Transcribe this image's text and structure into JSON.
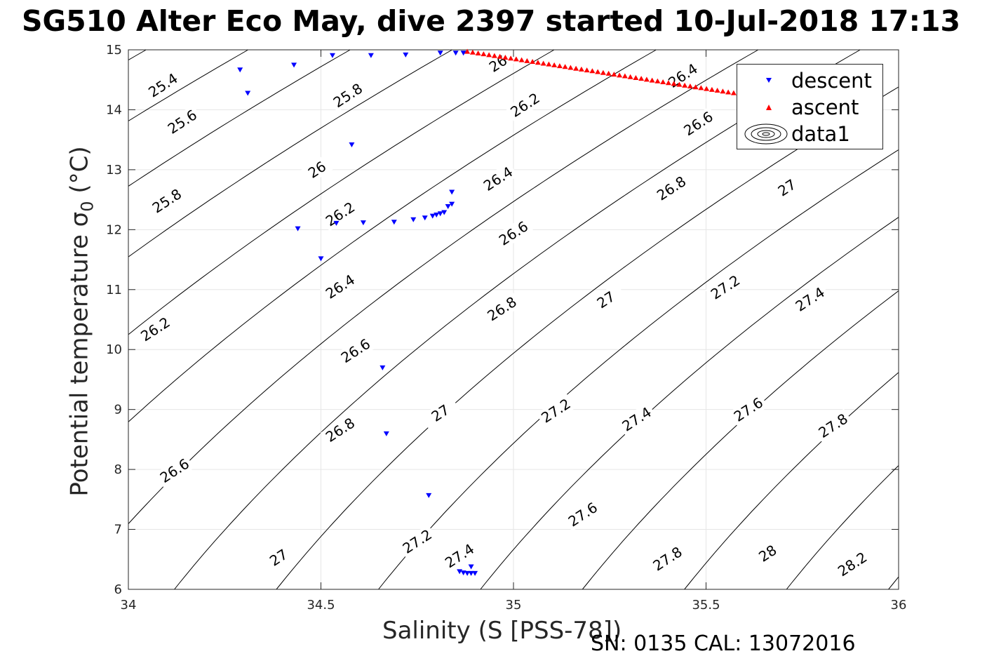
{
  "title": "SG510 Alter Eco May, dive 2397 started 10-Jul-2018 17:13",
  "xlabel": "Salinity (S [PSS-78])",
  "ylabel_main": "Potential temperature ",
  "ylabel_symbol": "σ",
  "ylabel_sub": "0",
  "ylabel_unit": " (°C)",
  "footer": "SN: 0135  CAL: 13072016",
  "colors": {
    "descent": "#0000ff",
    "ascent": "#ff0000",
    "contour": "#000000",
    "grid": "#e6e6e6",
    "axis": "#262626"
  },
  "chart_data": {
    "type": "scatter",
    "xlim": [
      34,
      36
    ],
    "ylim": [
      6,
      15
    ],
    "xticks": [
      "34",
      "34.5",
      "35",
      "35.5",
      "36"
    ],
    "yticks": [
      "6",
      "7",
      "8",
      "9",
      "10",
      "11",
      "12",
      "13",
      "14",
      "15"
    ],
    "grid": true,
    "legend_position": "top-right",
    "legend": [
      "descent",
      "ascent",
      "data1"
    ],
    "series": [
      {
        "name": "descent",
        "marker": "triangle-down",
        "color": "#0000ff",
        "points": [
          [
            34.29,
            14.67
          ],
          [
            34.31,
            14.28
          ],
          [
            34.43,
            14.75
          ],
          [
            34.53,
            14.91
          ],
          [
            34.63,
            14.91
          ],
          [
            34.72,
            14.92
          ],
          [
            34.81,
            14.95
          ],
          [
            34.85,
            14.95
          ],
          [
            34.87,
            14.95
          ],
          [
            34.58,
            13.42
          ],
          [
            34.84,
            12.63
          ],
          [
            34.84,
            12.43
          ],
          [
            34.83,
            12.39
          ],
          [
            34.82,
            12.29
          ],
          [
            34.81,
            12.27
          ],
          [
            34.8,
            12.25
          ],
          [
            34.79,
            12.23
          ],
          [
            34.77,
            12.2
          ],
          [
            34.74,
            12.17
          ],
          [
            34.69,
            12.13
          ],
          [
            34.61,
            12.12
          ],
          [
            34.54,
            12.11
          ],
          [
            34.44,
            12.02
          ],
          [
            34.5,
            11.52
          ],
          [
            34.66,
            9.7
          ],
          [
            34.67,
            8.6
          ],
          [
            34.78,
            7.57
          ],
          [
            34.89,
            6.38
          ],
          [
            34.86,
            6.3
          ],
          [
            34.87,
            6.28
          ],
          [
            34.88,
            6.27
          ],
          [
            34.89,
            6.27
          ],
          [
            34.9,
            6.27
          ]
        ]
      },
      {
        "name": "ascent",
        "marker": "triangle-up",
        "color": "#ff0000",
        "line_from": [
          34.88,
          14.97
        ],
        "line_to": [
          35.6,
          14.25
        ],
        "count": 52
      }
    ],
    "contours": {
      "name": "data1",
      "levels": [
        "25.4",
        "25.6",
        "25.8",
        "26",
        "26.2",
        "26.4",
        "26.6",
        "26.8",
        "27",
        "27.2",
        "27.4",
        "27.6",
        "27.8",
        "28",
        "28.2"
      ],
      "labels": [
        {
          "text": "25.4",
          "x": 34.09,
          "y": 14.41
        },
        {
          "text": "25.6",
          "x": 34.14,
          "y": 13.8
        },
        {
          "text": "25.8",
          "x": 34.1,
          "y": 12.48
        },
        {
          "text": "25.8",
          "x": 34.57,
          "y": 14.24
        },
        {
          "text": "26",
          "x": 34.49,
          "y": 13.0
        },
        {
          "text": "26",
          "x": 34.96,
          "y": 14.77
        },
        {
          "text": "26.2",
          "x": 34.07,
          "y": 10.34
        },
        {
          "text": "26.2",
          "x": 34.55,
          "y": 12.26
        },
        {
          "text": "26.2",
          "x": 35.03,
          "y": 14.08
        },
        {
          "text": "26.4",
          "x": 34.55,
          "y": 11.05
        },
        {
          "text": "26.4",
          "x": 34.96,
          "y": 12.85
        },
        {
          "text": "26.4",
          "x": 35.44,
          "y": 14.57
        },
        {
          "text": "26.6",
          "x": 34.12,
          "y": 7.98
        },
        {
          "text": "26.6",
          "x": 34.59,
          "y": 9.98
        },
        {
          "text": "26.6",
          "x": 35.0,
          "y": 11.94
        },
        {
          "text": "26.6",
          "x": 35.48,
          "y": 13.77
        },
        {
          "text": "26.8",
          "x": 34.55,
          "y": 8.66
        },
        {
          "text": "26.8",
          "x": 34.97,
          "y": 10.68
        },
        {
          "text": "26.8",
          "x": 35.41,
          "y": 12.69
        },
        {
          "text": "27",
          "x": 34.39,
          "y": 6.53
        },
        {
          "text": "27",
          "x": 34.81,
          "y": 8.94
        },
        {
          "text": "27",
          "x": 35.24,
          "y": 10.83
        },
        {
          "text": "27",
          "x": 35.71,
          "y": 12.7
        },
        {
          "text": "27.2",
          "x": 34.75,
          "y": 6.8
        },
        {
          "text": "27.2",
          "x": 35.11,
          "y": 8.98
        },
        {
          "text": "27.2",
          "x": 35.55,
          "y": 11.04
        },
        {
          "text": "27.4",
          "x": 34.86,
          "y": 6.56
        },
        {
          "text": "27.4",
          "x": 35.32,
          "y": 8.84
        },
        {
          "text": "27.4",
          "x": 35.77,
          "y": 10.84
        },
        {
          "text": "27.6",
          "x": 35.18,
          "y": 7.25
        },
        {
          "text": "27.6",
          "x": 35.61,
          "y": 9.0
        },
        {
          "text": "27.8",
          "x": 35.4,
          "y": 6.51
        },
        {
          "text": "27.8",
          "x": 35.83,
          "y": 8.73
        },
        {
          "text": "28",
          "x": 35.66,
          "y": 6.6
        },
        {
          "text": "28.2",
          "x": 35.88,
          "y": 6.42
        }
      ]
    }
  }
}
